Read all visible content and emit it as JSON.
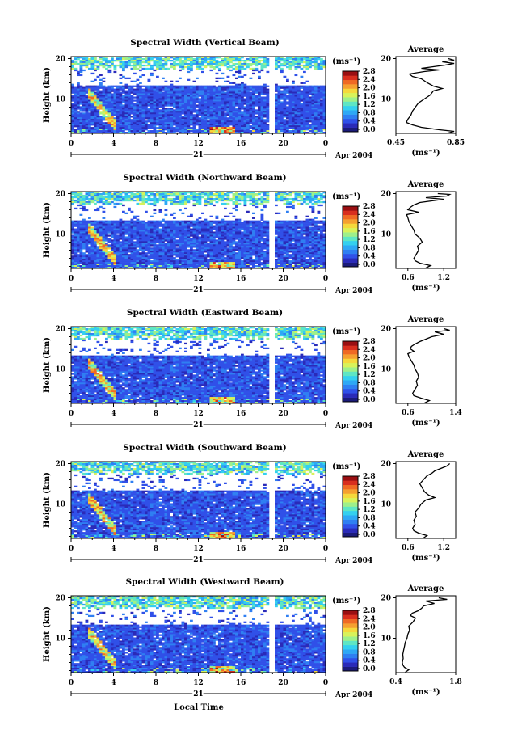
{
  "chart_data": [
    {
      "type": "heatmap",
      "title": "Spectral Width (Vertical Beam)",
      "ylabel": "Height (km)",
      "x_ticks": [
        "0",
        "4",
        "8",
        "12",
        "16",
        "20",
        "0"
      ],
      "y_ticks": [
        "20",
        "10"
      ],
      "xlim": [
        0,
        24
      ],
      "ylim": [
        1.5,
        20.5
      ],
      "date_label": "Apr 2004",
      "day_label": "21",
      "colorbar": {
        "unit": "(ms⁻¹)",
        "ticks": [
          "2.8",
          "2.4",
          "2.0",
          "1.6",
          "1.2",
          "0.8",
          "0.4",
          "0.0"
        ]
      },
      "data_gap_hours": [
        18.6,
        19.2
      ],
      "average": {
        "title": "Average",
        "xlabel": "(ms⁻¹)",
        "x_ticks": [
          "0.45",
          "0.85"
        ],
        "xlim": [
          0.45,
          0.85
        ],
        "y_ticks": [
          "20",
          "10"
        ],
        "profile": [
          [
            1.6,
            0.8
          ],
          [
            2.0,
            0.84
          ],
          [
            2.4,
            0.74
          ],
          [
            3.0,
            0.62
          ],
          [
            3.6,
            0.56
          ],
          [
            4.2,
            0.52
          ],
          [
            5,
            0.53
          ],
          [
            6,
            0.55
          ],
          [
            7,
            0.56
          ],
          [
            8,
            0.58
          ],
          [
            9,
            0.6
          ],
          [
            10,
            0.64
          ],
          [
            11,
            0.68
          ],
          [
            12,
            0.7
          ],
          [
            12.6,
            0.76
          ],
          [
            13.2,
            0.7
          ],
          [
            14,
            0.66
          ],
          [
            15,
            0.62
          ],
          [
            15.6,
            0.56
          ],
          [
            16.2,
            0.54
          ],
          [
            16.8,
            0.64
          ],
          [
            17.2,
            0.74
          ],
          [
            17.6,
            0.62
          ],
          [
            18.0,
            0.7
          ],
          [
            18.4,
            0.78
          ],
          [
            18.8,
            0.84
          ],
          [
            19.2,
            0.76
          ],
          [
            19.6,
            0.84
          ],
          [
            20.0,
            0.8
          ]
        ]
      }
    },
    {
      "type": "heatmap",
      "title": "Spectral Width (Northward Beam)",
      "ylabel": "Height (km)",
      "x_ticks": [
        "0",
        "4",
        "8",
        "12",
        "16",
        "20",
        "0"
      ],
      "y_ticks": [
        "20",
        "10"
      ],
      "xlim": [
        0,
        24
      ],
      "ylim": [
        1.5,
        20.5
      ],
      "date_label": "Apr 2004",
      "day_label": "21",
      "colorbar": {
        "unit": "(ms⁻¹)",
        "ticks": [
          "2.8",
          "2.4",
          "2.0",
          "1.6",
          "1.2",
          "0.8",
          "0.4",
          "0.0"
        ]
      },
      "data_gap_hours": [
        18.6,
        19.2
      ],
      "average": {
        "title": "Average",
        "xlabel": "(ms⁻¹)",
        "x_ticks": [
          "0.6",
          "1.2"
        ],
        "xlim": [
          0.4,
          1.4
        ],
        "y_ticks": [
          "20",
          "10"
        ],
        "profile": [
          [
            1.6,
            0.9
          ],
          [
            2.2,
            0.98
          ],
          [
            2.8,
            0.8
          ],
          [
            3.4,
            0.72
          ],
          [
            4,
            0.7
          ],
          [
            5,
            0.74
          ],
          [
            6,
            0.78
          ],
          [
            7,
            0.76
          ],
          [
            8,
            0.84
          ],
          [
            9,
            0.8
          ],
          [
            10,
            0.72
          ],
          [
            11,
            0.7
          ],
          [
            12,
            0.66
          ],
          [
            13,
            0.62
          ],
          [
            14,
            0.6
          ],
          [
            14.8,
            0.58
          ],
          [
            15.4,
            0.78
          ],
          [
            16,
            0.6
          ],
          [
            16.6,
            0.64
          ],
          [
            17.2,
            0.7
          ],
          [
            17.8,
            0.8
          ],
          [
            18.2,
            1.0
          ],
          [
            18.6,
            1.2
          ],
          [
            19.0,
            0.9
          ],
          [
            19.4,
            1.25
          ],
          [
            19.8,
            1.3
          ],
          [
            20,
            1.1
          ]
        ]
      }
    },
    {
      "type": "heatmap",
      "title": "Spectral Width (Eastward Beam)",
      "ylabel": "Height (km)",
      "x_ticks": [
        "0",
        "4",
        "8",
        "12",
        "16",
        "20",
        "0"
      ],
      "y_ticks": [
        "20",
        "10"
      ],
      "xlim": [
        0,
        24
      ],
      "ylim": [
        1.5,
        20.5
      ],
      "date_label": "Apr 2004",
      "day_label": "21",
      "colorbar": {
        "unit": "(ms⁻¹)",
        "ticks": [
          "2.8",
          "2.4",
          "2.0",
          "1.6",
          "1.2",
          "0.8",
          "0.4",
          "0.0"
        ]
      },
      "data_gap_hours": [
        18.6,
        19.2
      ],
      "average": {
        "title": "Average",
        "xlabel": "(ms⁻¹)",
        "x_ticks": [
          "0.6",
          "1.4"
        ],
        "xlim": [
          0.4,
          1.4
        ],
        "y_ticks": [
          "20",
          "10"
        ],
        "profile": [
          [
            1.6,
            0.88
          ],
          [
            2.2,
            0.96
          ],
          [
            2.8,
            0.82
          ],
          [
            3.4,
            0.7
          ],
          [
            4,
            0.68
          ],
          [
            5,
            0.72
          ],
          [
            6,
            0.76
          ],
          [
            7,
            0.74
          ],
          [
            8,
            0.78
          ],
          [
            9,
            0.76
          ],
          [
            10,
            0.72
          ],
          [
            11,
            0.7
          ],
          [
            12,
            0.66
          ],
          [
            13,
            0.62
          ],
          [
            13.8,
            0.6
          ],
          [
            14.4,
            0.7
          ],
          [
            15,
            0.64
          ],
          [
            15.6,
            0.66
          ],
          [
            16.2,
            0.72
          ],
          [
            16.8,
            0.8
          ],
          [
            17.4,
            0.9
          ],
          [
            18,
            1.0
          ],
          [
            18.6,
            1.2
          ],
          [
            19.2,
            1.05
          ],
          [
            19.6,
            1.3
          ],
          [
            20,
            1.2
          ]
        ]
      }
    },
    {
      "type": "heatmap",
      "title": "Spectral Width (Southward Beam)",
      "ylabel": "Height (km)",
      "x_ticks": [
        "0",
        "4",
        "8",
        "12",
        "16",
        "20",
        "0"
      ],
      "y_ticks": [
        "20",
        "10"
      ],
      "xlim": [
        0,
        24
      ],
      "ylim": [
        1.5,
        20.5
      ],
      "date_label": "Apr 2004",
      "day_label": "21",
      "colorbar": {
        "unit": "(ms⁻¹)",
        "ticks": [
          "2.8",
          "2.4",
          "2.0",
          "1.6",
          "1.2",
          "0.8",
          "0.4",
          "0.0"
        ]
      },
      "data_gap_hours": [
        18.6,
        19.2
      ],
      "average": {
        "title": "Average",
        "xlabel": "(ms⁻¹)",
        "x_ticks": [
          "0.6",
          "1.2"
        ],
        "xlim": [
          0.4,
          1.4
        ],
        "y_ticks": [
          "20",
          "10"
        ],
        "profile": [
          [
            1.6,
            0.86
          ],
          [
            2.2,
            0.92
          ],
          [
            2.8,
            0.78
          ],
          [
            3.4,
            0.7
          ],
          [
            4,
            0.68
          ],
          [
            5,
            0.72
          ],
          [
            6,
            0.7
          ],
          [
            7,
            0.74
          ],
          [
            8,
            0.72
          ],
          [
            9,
            0.78
          ],
          [
            10,
            0.82
          ],
          [
            11,
            0.9
          ],
          [
            11.6,
            1.05
          ],
          [
            12.2,
            0.95
          ],
          [
            13,
            0.88
          ],
          [
            14,
            0.84
          ],
          [
            15,
            0.8
          ],
          [
            16,
            0.86
          ],
          [
            17,
            0.92
          ],
          [
            17.6,
            1.0
          ],
          [
            18.2,
            1.05
          ],
          [
            18.8,
            1.15
          ],
          [
            19.4,
            1.25
          ],
          [
            20,
            1.3
          ]
        ]
      }
    },
    {
      "type": "heatmap",
      "title": "Spectral Width (Westward Beam)",
      "ylabel": "Height (km)",
      "x_ticks": [
        "0",
        "4",
        "8",
        "12",
        "16",
        "20",
        "0"
      ],
      "y_ticks": [
        "20",
        "10"
      ],
      "xlim": [
        0,
        24
      ],
      "ylim": [
        1.5,
        20.5
      ],
      "date_label": "Apr 2004",
      "day_label": "21",
      "colorbar": {
        "unit": "(ms⁻¹)",
        "ticks": [
          "2.8",
          "2.4",
          "2.0",
          "1.6",
          "1.2",
          "0.8",
          "0.4",
          "0.0"
        ]
      },
      "data_gap_hours": [
        18.6,
        19.2
      ],
      "average": {
        "title": "Average",
        "xlabel": "(ms⁻¹)",
        "x_ticks": [
          "0.4",
          "1.8"
        ],
        "xlim": [
          0.4,
          1.8
        ],
        "y_ticks": [
          "20",
          "10"
        ],
        "profile": [
          [
            1.6,
            0.62
          ],
          [
            2.2,
            0.7
          ],
          [
            2.8,
            0.6
          ],
          [
            3.4,
            0.56
          ],
          [
            4,
            0.55
          ],
          [
            5,
            0.57
          ],
          [
            6,
            0.56
          ],
          [
            7,
            0.58
          ],
          [
            8,
            0.6
          ],
          [
            9,
            0.62
          ],
          [
            10,
            0.66
          ],
          [
            11,
            0.68
          ],
          [
            12,
            0.72
          ],
          [
            13,
            0.7
          ],
          [
            14,
            0.8
          ],
          [
            15,
            0.86
          ],
          [
            15.6,
            0.74
          ],
          [
            16.2,
            0.78
          ],
          [
            16.8,
            0.92
          ],
          [
            17.4,
            1.0
          ],
          [
            18,
            1.05
          ],
          [
            18.6,
            1.3
          ],
          [
            19.2,
            1.1
          ],
          [
            19.6,
            1.6
          ],
          [
            20,
            1.4
          ]
        ]
      }
    }
  ],
  "xlabel": "Local Time",
  "colormap": [
    "#1b1b7a",
    "#2a2ab8",
    "#3050e8",
    "#2f7ff2",
    "#2ea8f5",
    "#34d0ef",
    "#5ee6c4",
    "#9ef08a",
    "#d8f25a",
    "#f5d83c",
    "#f5a030",
    "#ef6a24",
    "#d82e1e",
    "#9a0f12"
  ],
  "colors": {
    "background": "#ffffff",
    "field": "#2343d8",
    "ink": "#000000"
  }
}
